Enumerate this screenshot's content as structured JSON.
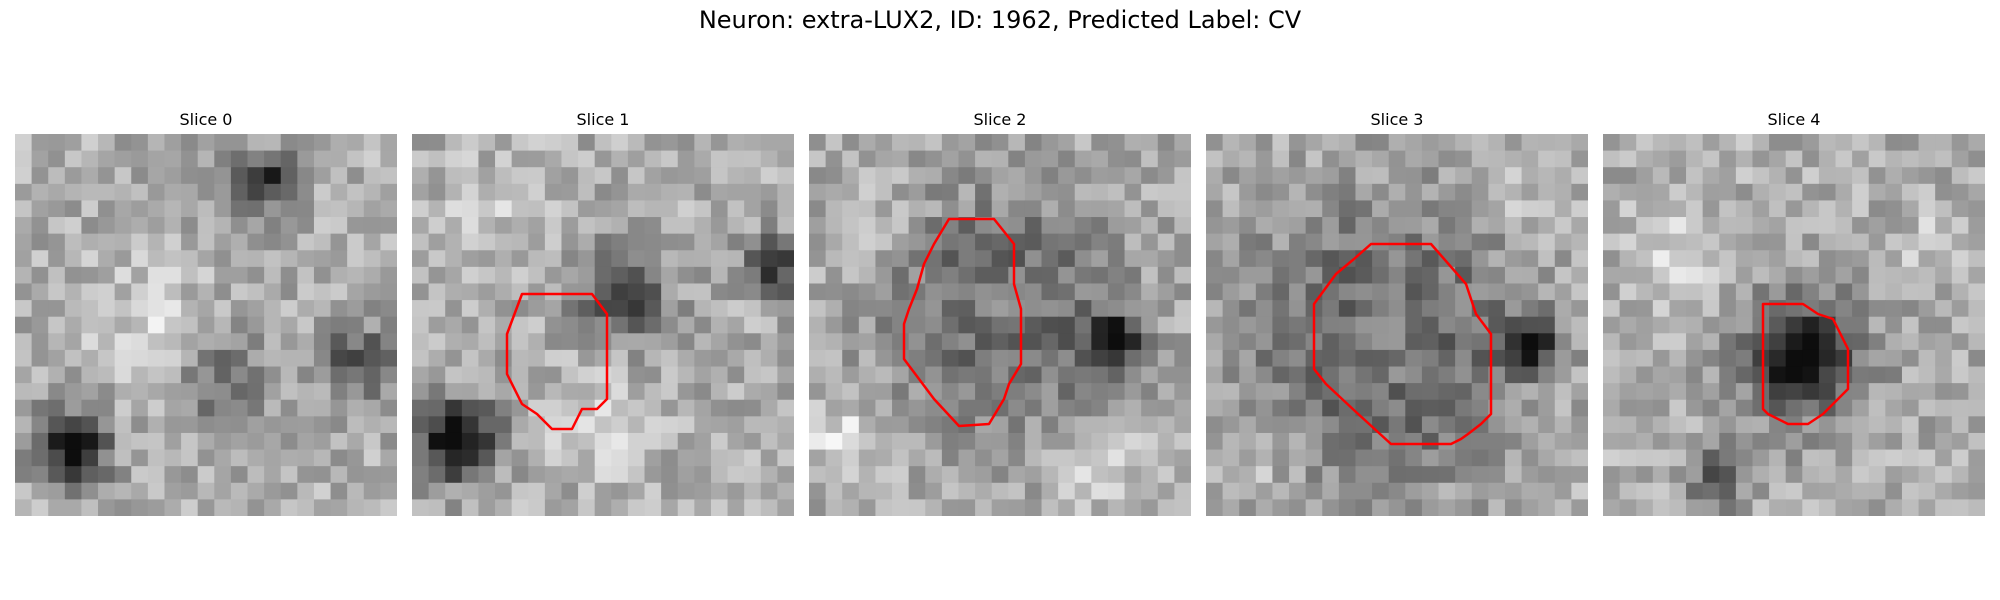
{
  "figure": {
    "title": "Neuron: extra-LUX2, ID: 1962, Predicted Label: CV"
  },
  "panels": [
    {
      "title": "Slice 0",
      "contour": false
    },
    {
      "title": "Slice 1",
      "contour": true
    },
    {
      "title": "Slice 2",
      "contour": true
    },
    {
      "title": "Slice 3",
      "contour": true
    },
    {
      "title": "Slice 4",
      "contour": true
    }
  ],
  "colors": {
    "contour": "#ff0000"
  }
}
